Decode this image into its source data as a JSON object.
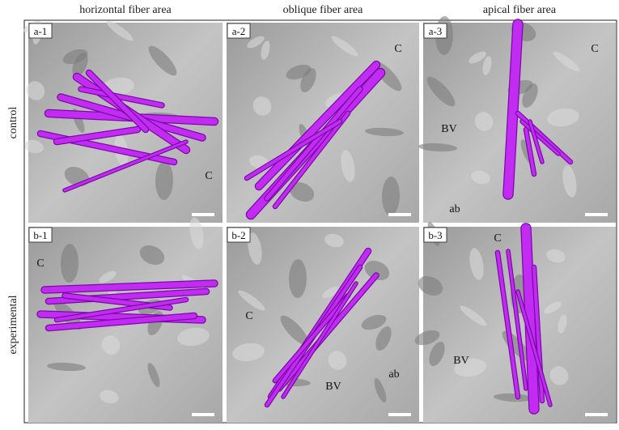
{
  "columns": [
    "horizontal fiber area",
    "oblique fiber area",
    "apical fiber area"
  ],
  "rows": [
    "control",
    "experimental"
  ],
  "panels": [
    {
      "label": "a-1",
      "annotations": [
        "C"
      ]
    },
    {
      "label": "a-2",
      "annotations": [
        "C"
      ]
    },
    {
      "label": "a-3",
      "annotations": [
        "C",
        "BV",
        "ab"
      ]
    },
    {
      "label": "b-1",
      "annotations": [
        "C"
      ]
    },
    {
      "label": "b-2",
      "annotations": [
        "C",
        "BV",
        "ab"
      ]
    },
    {
      "label": "b-3",
      "annotations": [
        "C",
        "BV"
      ]
    }
  ]
}
